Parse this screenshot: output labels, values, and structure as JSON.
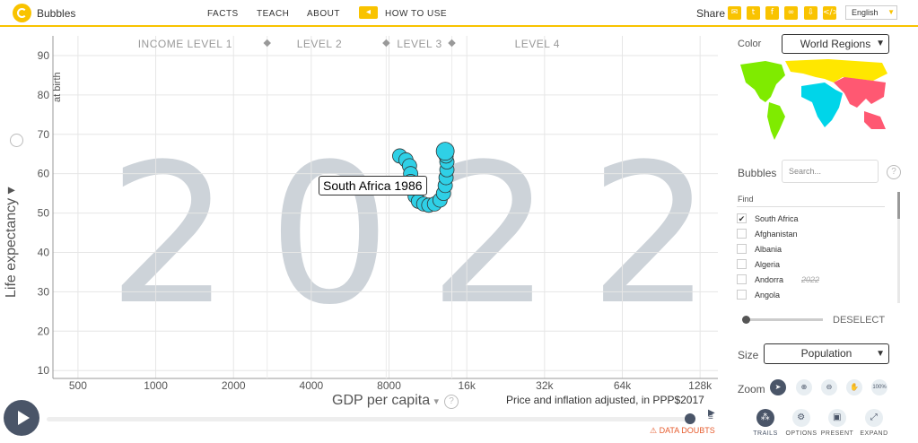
{
  "topbar": {
    "app_title": "Bubbles",
    "nav": [
      "FACTS",
      "TEACH",
      "ABOUT"
    ],
    "how_to_use": "HOW TO USE",
    "share_label": "Share",
    "share_icons": [
      "mail-icon",
      "twitter-icon",
      "facebook-icon",
      "link-icon",
      "download-icon",
      "embed-icon"
    ],
    "language": "English"
  },
  "chart": {
    "year": "2022",
    "tooltip": "South Africa 1986",
    "income_levels": [
      "INCOME LEVEL 1",
      "LEVEL 2",
      "LEVEL 3",
      "LEVEL 4"
    ],
    "y_axis_label": "Life expectancy",
    "y_axis_sublabel": "at birth",
    "x_axis_label": "GDP per capita",
    "price_note": "Price and inflation adjusted, in PPP$2017",
    "data_doubts": "DATA DOUBTS"
  },
  "chart_data": {
    "type": "scatter",
    "xlabel": "GDP per capita",
    "ylabel": "Life expectancy",
    "x_scale": "log",
    "x_ticks": [
      "500",
      "1000",
      "2000",
      "4000",
      "8000",
      "16k",
      "32k",
      "64k",
      "128k"
    ],
    "y_ticks": [
      "10",
      "20",
      "30",
      "40",
      "50",
      "60",
      "70",
      "80",
      "90"
    ],
    "xlim": [
      400,
      150000
    ],
    "ylim": [
      8,
      95
    ],
    "series": [
      {
        "name": "South Africa",
        "color": "#2fd0e6",
        "points": [
          {
            "x": 8800,
            "y": 64.5
          },
          {
            "x": 9300,
            "y": 63.5
          },
          {
            "x": 9600,
            "y": 62.0
          },
          {
            "x": 9700,
            "y": 60.0
          },
          {
            "x": 9700,
            "y": 58.0
          },
          {
            "x": 9800,
            "y": 56.0
          },
          {
            "x": 10100,
            "y": 54.3
          },
          {
            "x": 10400,
            "y": 53.0
          },
          {
            "x": 10900,
            "y": 52.3
          },
          {
            "x": 11400,
            "y": 52.0
          },
          {
            "x": 12000,
            "y": 52.3
          },
          {
            "x": 12600,
            "y": 53.3
          },
          {
            "x": 13000,
            "y": 55.0
          },
          {
            "x": 13200,
            "y": 57.0
          },
          {
            "x": 13300,
            "y": 59.0
          },
          {
            "x": 13400,
            "y": 61.0
          },
          {
            "x": 13400,
            "y": 63.0
          },
          {
            "x": 13300,
            "y": 64.5
          },
          {
            "x": 13200,
            "y": 65.7
          }
        ]
      }
    ]
  },
  "panel": {
    "color_label": "Color",
    "color_select": "World Regions",
    "region_colors": [
      "#7feb00",
      "#ffe700",
      "#00d5e9",
      "#ff5872"
    ],
    "bubbles_label": "Bubbles",
    "search_placeholder": "Search...",
    "find_label": "Find",
    "countries": [
      {
        "name": "South Africa",
        "checked": true,
        "year": ""
      },
      {
        "name": "Afghanistan",
        "checked": false,
        "year": ""
      },
      {
        "name": "Albania",
        "checked": false,
        "year": ""
      },
      {
        "name": "Algeria",
        "checked": false,
        "year": ""
      },
      {
        "name": "Andorra",
        "checked": false,
        "year": "2022"
      },
      {
        "name": "Angola",
        "checked": false,
        "year": ""
      }
    ],
    "deselect": "DESELECT",
    "size_label": "Size",
    "size_select": "Population",
    "zoom_label": "Zoom",
    "zoom_percent": "100%",
    "tools": [
      "TRAILS",
      "OPTIONS",
      "PRESENT",
      "EXPAND"
    ]
  }
}
